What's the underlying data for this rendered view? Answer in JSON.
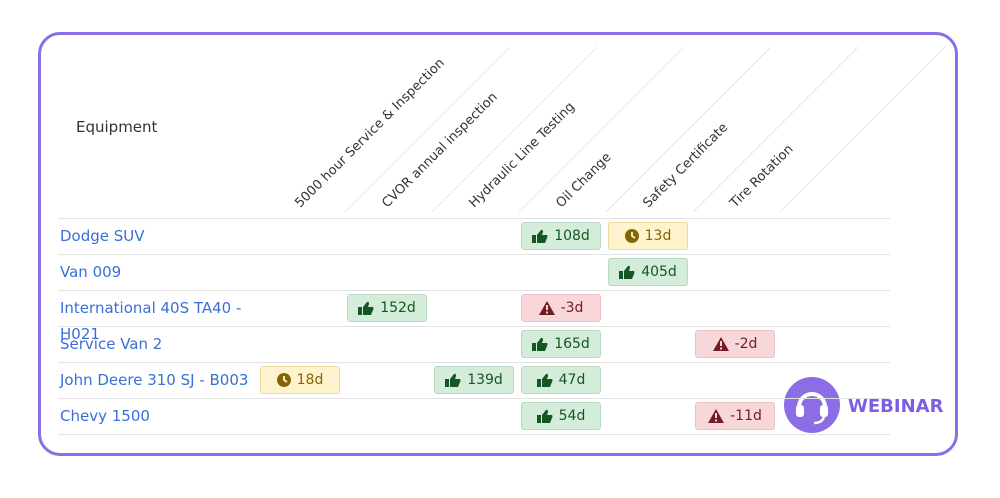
{
  "header": {
    "equipment": "Equipment",
    "columns": [
      "5000 hour Service & Inspection",
      "CVOR annual inspection",
      "Hydraulic Line Testing",
      "Oil Change",
      "Safety Certificate",
      "Tire Rotation"
    ]
  },
  "rows": [
    {
      "name": "Dodge SUV",
      "cells": [
        null,
        null,
        null,
        {
          "text": "108d",
          "status": "ok"
        },
        {
          "text": "13d",
          "status": "due"
        },
        null
      ]
    },
    {
      "name": "Van 009",
      "cells": [
        null,
        null,
        null,
        null,
        {
          "text": "405d",
          "status": "ok"
        },
        null
      ]
    },
    {
      "name": "International 40S TA40 - H021",
      "cells": [
        null,
        {
          "text": "152d",
          "status": "ok"
        },
        null,
        {
          "text": "-3d",
          "status": "overdue"
        },
        null,
        null
      ]
    },
    {
      "name": "Service Van 2",
      "cells": [
        null,
        null,
        null,
        {
          "text": "165d",
          "status": "ok"
        },
        null,
        {
          "text": "-2d",
          "status": "overdue"
        }
      ]
    },
    {
      "name": "John Deere 310 SJ - B003",
      "cells": [
        {
          "text": "18d",
          "status": "due"
        },
        null,
        {
          "text": "139d",
          "status": "ok"
        },
        {
          "text": "47d",
          "status": "ok"
        },
        null,
        null
      ]
    },
    {
      "name": "Chevy 1500",
      "cells": [
        null,
        null,
        null,
        {
          "text": "54d",
          "status": "ok"
        },
        null,
        {
          "text": "-11d",
          "status": "overdue"
        }
      ]
    }
  ],
  "logo": {
    "text": "WEBINAR"
  }
}
